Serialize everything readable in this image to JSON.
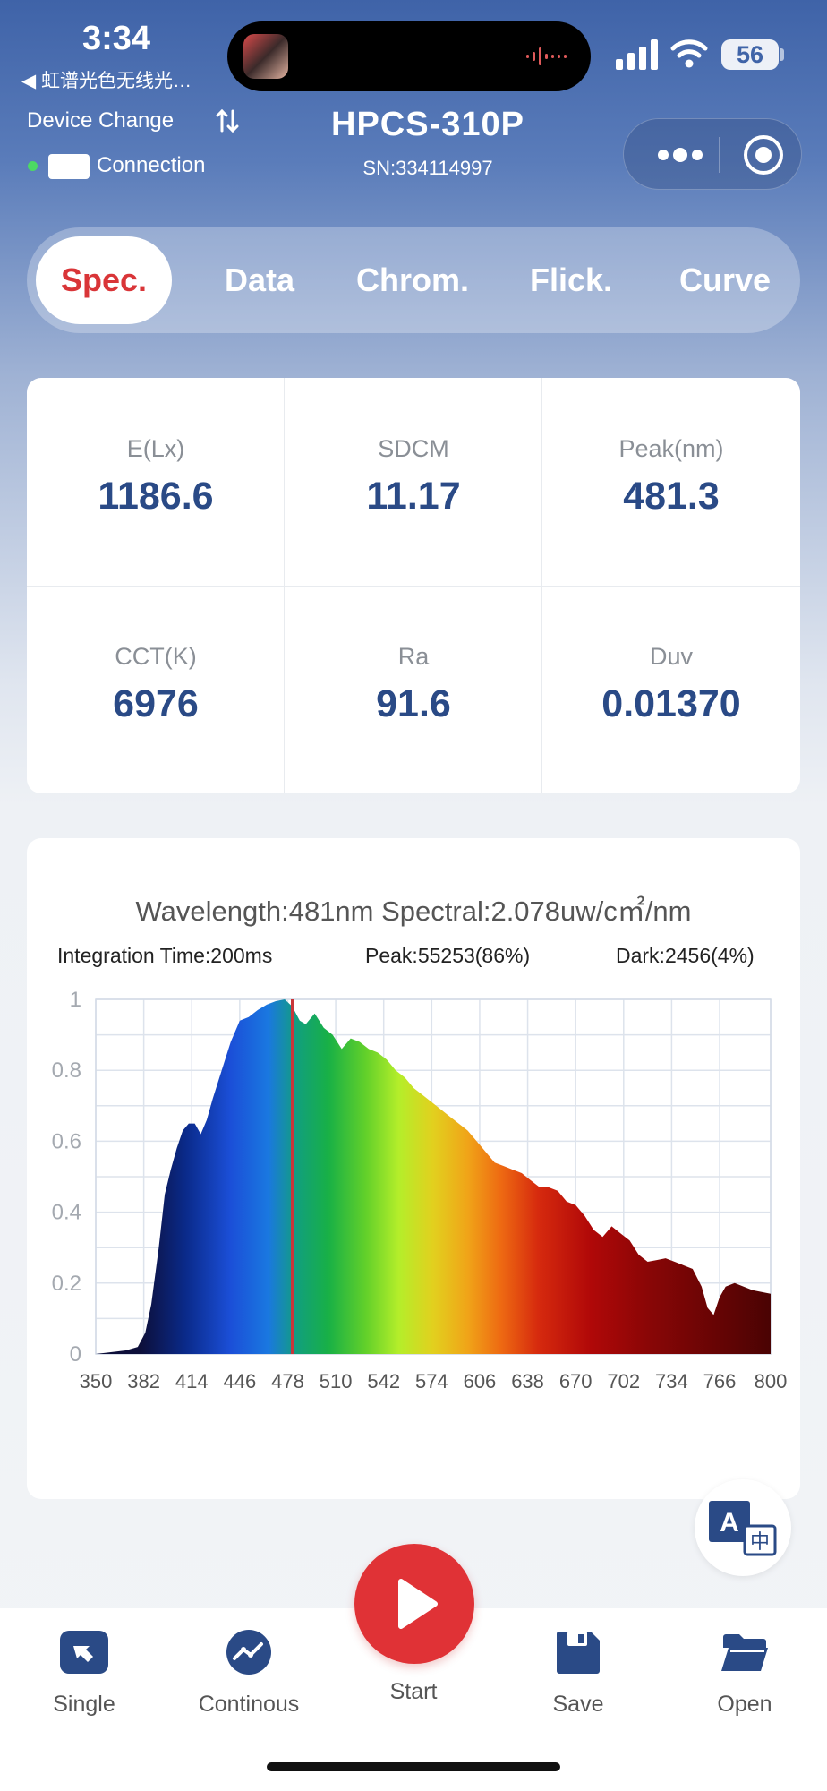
{
  "status_bar": {
    "time": "3:34",
    "back_label": "◀ 虹谱光色无线光…",
    "battery": "56"
  },
  "header": {
    "device_change": "Device Change",
    "connection": "Connection",
    "model": "HPCS-310P",
    "serial": "SN:334114997"
  },
  "tabs": [
    {
      "label": "Spec.",
      "active": true
    },
    {
      "label": "Data",
      "active": false
    },
    {
      "label": "Chrom.",
      "active": false
    },
    {
      "label": "Flick.",
      "active": false
    },
    {
      "label": "Curve",
      "active": false
    }
  ],
  "metrics": [
    {
      "label": "E(Lx)",
      "value": "1186.6"
    },
    {
      "label": "SDCM",
      "value": "11.17"
    },
    {
      "label": "Peak(nm)",
      "value": "481.3"
    },
    {
      "label": "CCT(K)",
      "value": "6976"
    },
    {
      "label": "Ra",
      "value": "91.6"
    },
    {
      "label": "Duv",
      "value": "0.01370"
    }
  ],
  "spectrum": {
    "readout": "Wavelength:481nm Spectral:2.078uw/c㎡/nm",
    "integration_time": "Integration Time:200ms",
    "peak": "Peak:55253(86%)",
    "dark": "Dark:2456(4%)"
  },
  "chart_data": {
    "type": "area",
    "xlim": [
      350,
      800
    ],
    "ylim": [
      0,
      1
    ],
    "x_ticks": [
      "350",
      "382",
      "414",
      "446",
      "478",
      "510",
      "542",
      "574",
      "606",
      "638",
      "670",
      "702",
      "734",
      "766",
      "800"
    ],
    "y_ticks": [
      "0",
      "0.2",
      "0.4",
      "0.6",
      "0.8",
      "1"
    ],
    "grid": true,
    "cursor_x": 481,
    "x": [
      350,
      360,
      370,
      378,
      383,
      387,
      392,
      396,
      400,
      404,
      408,
      412,
      416,
      420,
      424,
      428,
      434,
      440,
      446,
      452,
      458,
      464,
      470,
      476,
      481,
      486,
      490,
      496,
      502,
      508,
      514,
      520,
      526,
      532,
      538,
      544,
      550,
      556,
      562,
      568,
      574,
      580,
      586,
      592,
      598,
      604,
      610,
      616,
      622,
      628,
      634,
      640,
      646,
      652,
      658,
      664,
      670,
      676,
      682,
      688,
      694,
      700,
      706,
      712,
      718,
      724,
      730,
      736,
      742,
      748,
      754,
      758,
      762,
      766,
      770,
      776,
      782,
      788,
      794,
      800
    ],
    "y": [
      0.0,
      0.005,
      0.01,
      0.02,
      0.06,
      0.14,
      0.3,
      0.45,
      0.52,
      0.58,
      0.63,
      0.65,
      0.65,
      0.62,
      0.66,
      0.72,
      0.8,
      0.88,
      0.94,
      0.95,
      0.97,
      0.985,
      0.995,
      1.0,
      0.98,
      0.94,
      0.93,
      0.96,
      0.92,
      0.9,
      0.86,
      0.89,
      0.88,
      0.86,
      0.85,
      0.83,
      0.8,
      0.78,
      0.75,
      0.73,
      0.71,
      0.69,
      0.67,
      0.65,
      0.63,
      0.6,
      0.57,
      0.54,
      0.53,
      0.52,
      0.51,
      0.49,
      0.47,
      0.47,
      0.46,
      0.43,
      0.42,
      0.39,
      0.35,
      0.33,
      0.36,
      0.34,
      0.32,
      0.28,
      0.26,
      0.265,
      0.27,
      0.26,
      0.25,
      0.24,
      0.19,
      0.13,
      0.11,
      0.16,
      0.19,
      0.2,
      0.19,
      0.18,
      0.175,
      0.17
    ]
  },
  "bottom_nav": {
    "single": "Single",
    "continuous": "Continous",
    "start": "Start",
    "save": "Save",
    "open": "Open"
  },
  "colors": {
    "accent_red": "#e03236",
    "value_blue": "#2a4a86",
    "header_blue": "#3f63a8"
  }
}
